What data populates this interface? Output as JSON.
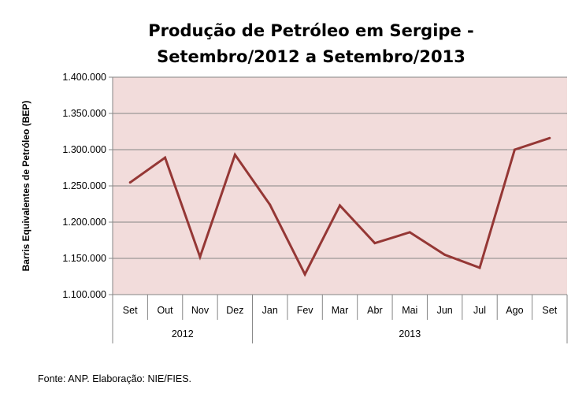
{
  "chart_data": {
    "type": "line",
    "title_lines": [
      "Produção de Petróleo em Sergipe -",
      "Setembro/2012 a Setembro/2013"
    ],
    "ylabel": "Barris Equivalentes de Petróleo (BEP)",
    "xlabel": "",
    "categories": [
      "Set",
      "Out",
      "Nov",
      "Dez",
      "Jan",
      "Fev",
      "Mar",
      "Abr",
      "Mai",
      "Jun",
      "Jul",
      "Ago",
      "Set"
    ],
    "groups": [
      {
        "label": "2012",
        "count": 4
      },
      {
        "label": "2013",
        "count": 9
      }
    ],
    "series": [
      {
        "name": "Produção",
        "values": [
          1254700,
          1289000,
          1152000,
          1293000,
          1224000,
          1128000,
          1223000,
          1171000,
          1186000,
          1155000,
          1137000,
          1300000,
          1316000
        ]
      }
    ],
    "ylim": [
      1100000,
      1400000
    ],
    "yticks": [
      1100000,
      1150000,
      1200000,
      1250000,
      1300000,
      1350000,
      1400000
    ],
    "ytick_labels": [
      "1.100.000",
      "1.150.000",
      "1.200.000",
      "1.250.000",
      "1.300.000",
      "1.350.000",
      "1.400.000"
    ],
    "grid": true,
    "legend": "none",
    "colors": {
      "line": "#953735",
      "plot_bg": "#f2dcdb",
      "grid": "#868686"
    }
  },
  "source": "Fonte: ANP. Elaboração: NIE/FIES."
}
